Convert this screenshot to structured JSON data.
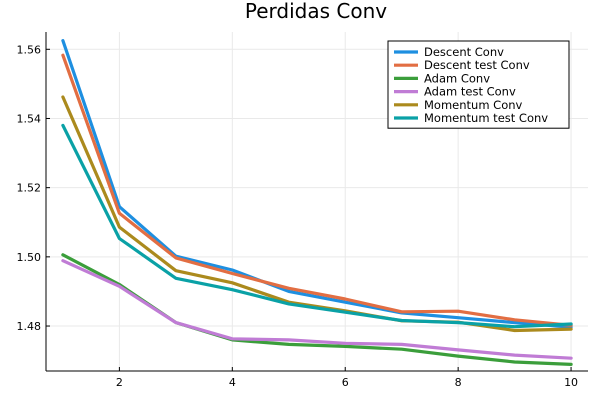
{
  "chart_data": {
    "type": "line",
    "title": "Perdidas Conv",
    "xlabel": "",
    "ylabel": "",
    "xlim": [
      0.7,
      10.3
    ],
    "ylim": [
      1.467,
      1.565
    ],
    "x_ticks": [
      2,
      4,
      6,
      8,
      10
    ],
    "y_ticks": [
      1.48,
      1.5,
      1.52,
      1.54,
      1.56
    ],
    "x_tick_labels": [
      "2",
      "4",
      "6",
      "8",
      "10"
    ],
    "y_tick_labels": [
      "1.48",
      "1.50",
      "1.52",
      "1.54",
      "1.56"
    ],
    "grid": true,
    "legend_position": "top-right",
    "x": [
      1,
      2,
      3,
      4,
      5,
      6,
      7,
      8,
      9,
      10
    ],
    "series": [
      {
        "name": "Descent Conv",
        "color": "#1e8fe0",
        "values": [
          1.5625,
          1.5145,
          1.5002,
          1.4962,
          1.49,
          1.4869,
          1.4838,
          1.4824,
          1.481,
          1.4797
        ]
      },
      {
        "name": "Descent test Conv",
        "color": "#e26e43",
        "values": [
          1.5583,
          1.5126,
          1.4997,
          1.4952,
          1.4909,
          1.4878,
          1.4841,
          1.4843,
          1.4818,
          1.4802
        ]
      },
      {
        "name": "Adam Conv",
        "color": "#3b9e3b",
        "values": [
          1.5006,
          1.492,
          1.481,
          1.476,
          1.4747,
          1.4741,
          1.4733,
          1.4713,
          1.4696,
          1.4689
        ]
      },
      {
        "name": "Adam test Conv",
        "color": "#c07cd5",
        "values": [
          1.4989,
          1.4915,
          1.481,
          1.4763,
          1.476,
          1.475,
          1.4747,
          1.4731,
          1.4716,
          1.4707
        ]
      },
      {
        "name": "Momentum Conv",
        "color": "#ab8a1d",
        "values": [
          1.5462,
          1.5086,
          1.496,
          1.4925,
          1.4869,
          1.4844,
          1.4815,
          1.4811,
          1.4787,
          1.4791
        ]
      },
      {
        "name": "Momentum test Conv",
        "color": "#0aa1a6",
        "values": [
          1.538,
          1.5053,
          1.4938,
          1.4905,
          1.4864,
          1.484,
          1.4816,
          1.481,
          1.4798,
          1.4806
        ]
      }
    ]
  }
}
